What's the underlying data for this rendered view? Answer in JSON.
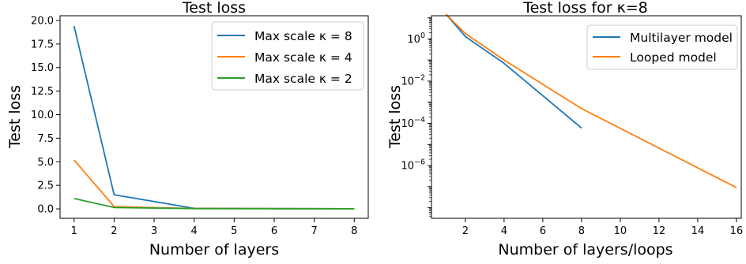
{
  "chart_data": [
    {
      "type": "line",
      "title": "Test loss",
      "xlabel": "Number of layers",
      "ylabel": "Test loss",
      "x": [
        1,
        2,
        4,
        8
      ],
      "xlim": [
        0.65,
        8.35
      ],
      "ylim": [
        -1.0,
        20.5
      ],
      "xticks": [
        1,
        2,
        3,
        4,
        5,
        6,
        7,
        8
      ],
      "xtick_labels": [
        "1",
        "2",
        "3",
        "4",
        "5",
        "6",
        "7",
        "8"
      ],
      "yticks": [
        0,
        2.5,
        5,
        7.5,
        10,
        12.5,
        15,
        17.5,
        20
      ],
      "ytick_labels": [
        "0.0",
        "2.5",
        "5.0",
        "7.5",
        "10.0",
        "12.5",
        "15.0",
        "17.5",
        "20.0"
      ],
      "legend_position": "top-right",
      "series": [
        {
          "name": "Max scale κ = 8",
          "color": "#1f77b4",
          "values": [
            19.4,
            1.5,
            0.05,
            0.01
          ]
        },
        {
          "name": "Max scale κ = 4",
          "color": "#ff7f0e",
          "values": [
            5.2,
            0.25,
            0.03,
            0.01
          ]
        },
        {
          "name": "Max scale κ = 2",
          "color": "#2ca02c",
          "values": [
            1.1,
            0.15,
            0.03,
            0.01
          ]
        }
      ]
    },
    {
      "type": "line",
      "title": "Test loss for κ=8",
      "xlabel": "Number of layers/loops",
      "ylabel": "Test loss",
      "yscale": "log",
      "xlim": [
        0.25,
        16.25
      ],
      "ylim_log10": [
        -8.5,
        1.1
      ],
      "xticks": [
        2,
        4,
        6,
        8,
        10,
        12,
        14,
        16
      ],
      "xtick_labels": [
        "2",
        "4",
        "6",
        "8",
        "10",
        "12",
        "14",
        "16"
      ],
      "yticks_log10": [
        0,
        -2,
        -4,
        -6
      ],
      "ytick_labels": [
        "10",
        "10",
        "10",
        "10"
      ],
      "ytick_exponents": [
        "0",
        "−2",
        "−4",
        "−6"
      ],
      "legend_position": "top-right",
      "series": [
        {
          "name": "Multilayer model",
          "color": "#1f77b4",
          "x": [
            1,
            2,
            4,
            8
          ],
          "values": [
            15,
            1.3,
            0.07,
            6e-05
          ]
        },
        {
          "name": "Looped model",
          "color": "#ff7f0e",
          "x": [
            1,
            2,
            4,
            8,
            16
          ],
          "values": [
            15,
            1.8,
            0.1,
            0.0005,
            9e-08
          ]
        }
      ]
    }
  ]
}
